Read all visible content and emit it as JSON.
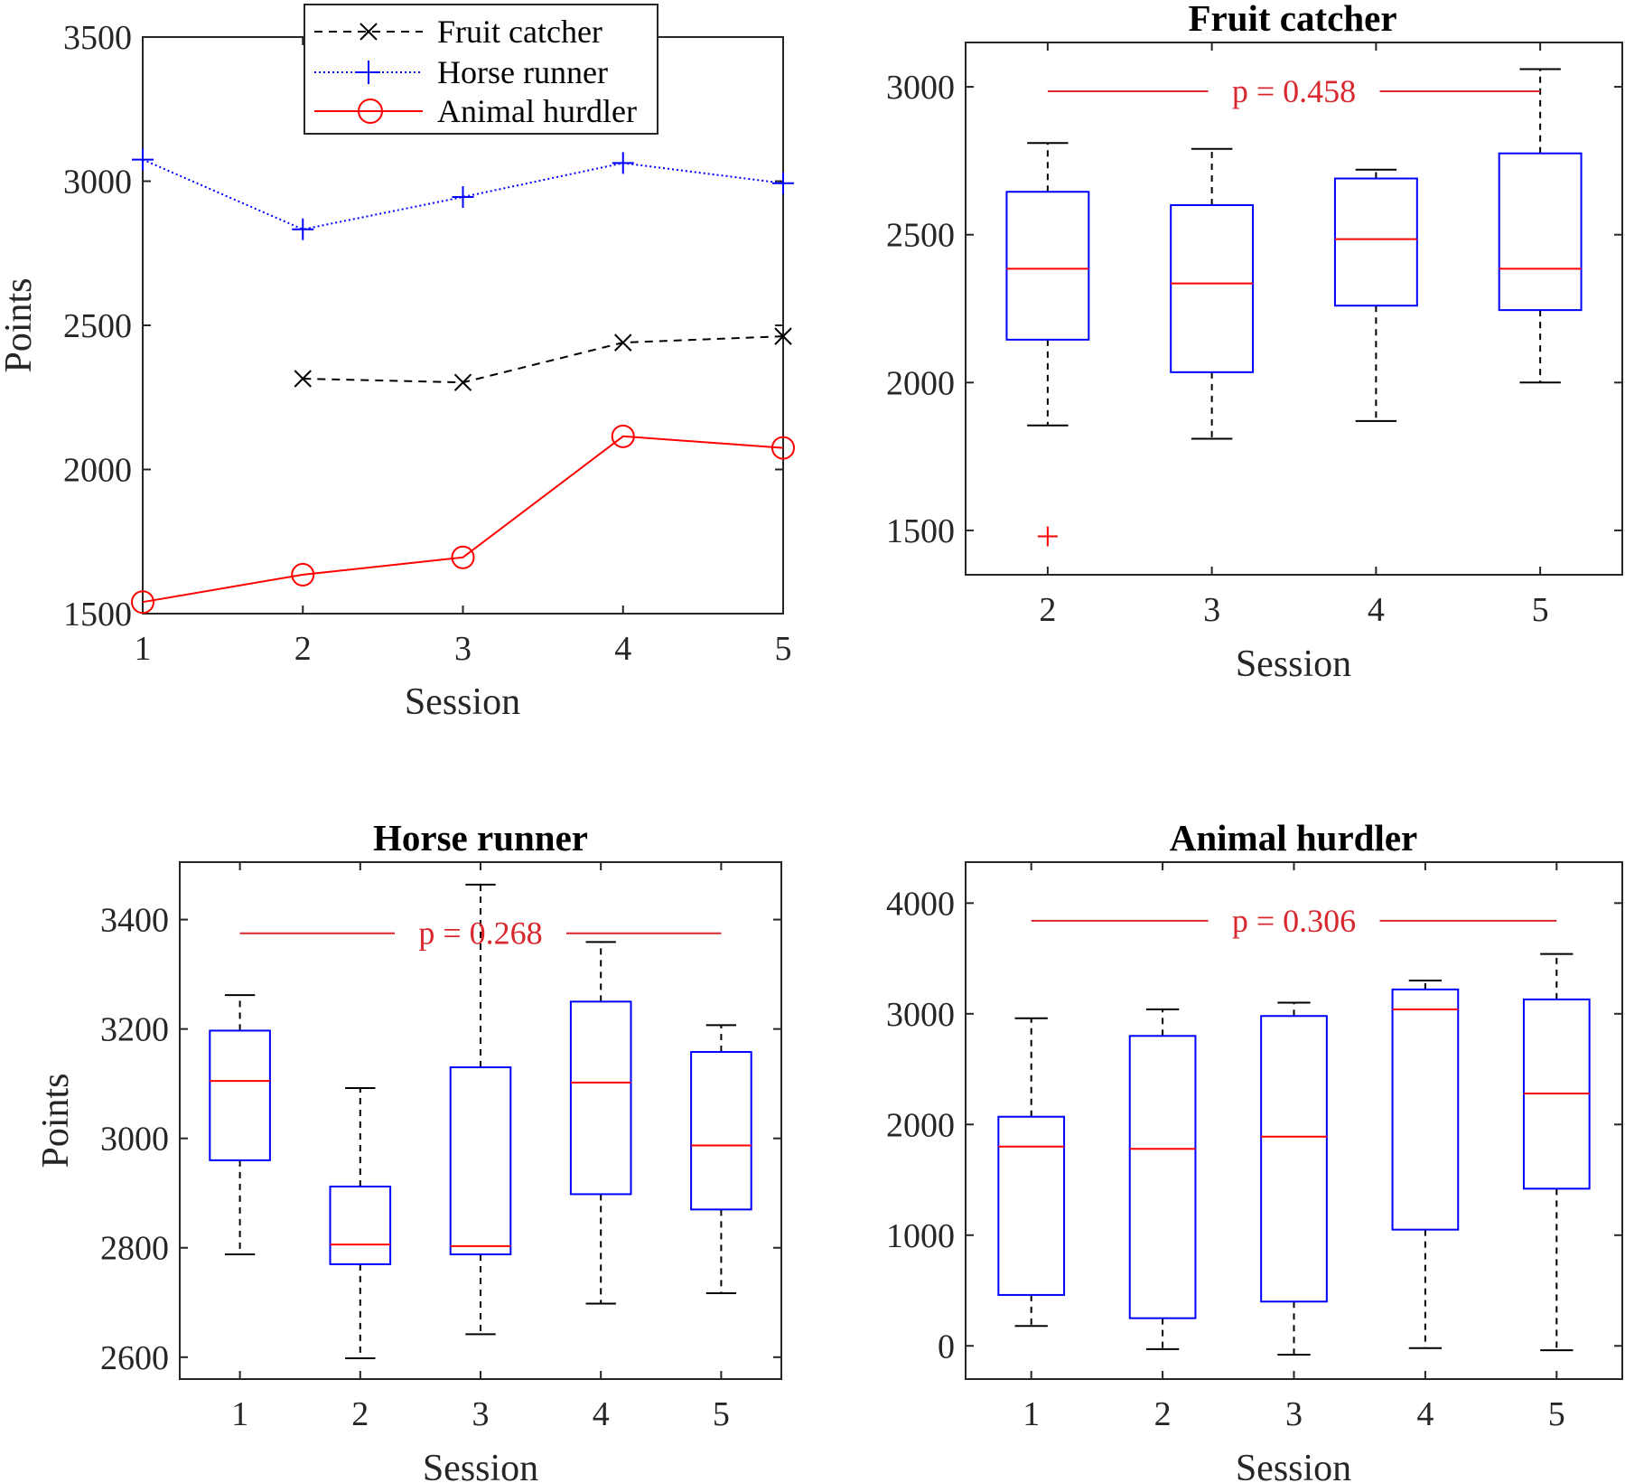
{
  "chart_data": [
    {
      "type": "line",
      "title": "",
      "xlabel": "Session",
      "ylabel": "Points",
      "xlim": [
        1,
        5
      ],
      "ylim": [
        1500,
        3500
      ],
      "xticks": [
        1,
        2,
        3,
        4,
        5
      ],
      "yticks": [
        1500,
        2000,
        2500,
        3000,
        3500
      ],
      "legend_position": "top-center",
      "series": [
        {
          "name": "Fruit catcher",
          "style": "dashed",
          "marker": "x",
          "color": "#000000",
          "x": [
            2,
            3,
            4,
            5
          ],
          "values": [
            2315,
            2302,
            2440,
            2462
          ]
        },
        {
          "name": "Horse runner",
          "style": "dotted",
          "marker": "+",
          "color": "#0000ff",
          "x": [
            1,
            2,
            3,
            4,
            5
          ],
          "values": [
            3075,
            2833,
            2945,
            3063,
            2993
          ]
        },
        {
          "name": "Animal hurdler",
          "style": "solid",
          "marker": "o",
          "color": "#ff0000",
          "x": [
            1,
            2,
            3,
            4,
            5
          ],
          "values": [
            1540,
            1635,
            1695,
            2115,
            2075
          ]
        }
      ]
    },
    {
      "type": "box",
      "title": "Fruit catcher",
      "xlabel": "Session",
      "ylabel": "",
      "categories": [
        "2",
        "3",
        "4",
        "5"
      ],
      "ylim": [
        1350,
        3150
      ],
      "yticks": [
        1500,
        2000,
        2500,
        3000
      ],
      "pvalue": {
        "label": "p = 0.458",
        "y": 2985
      },
      "boxes": [
        {
          "cat": "2",
          "whisker_low": 1855,
          "q1": 2145,
          "median": 2385,
          "q3": 2645,
          "whisker_high": 2810,
          "outliers": [
            1480
          ]
        },
        {
          "cat": "3",
          "whisker_low": 1810,
          "q1": 2035,
          "median": 2335,
          "q3": 2600,
          "whisker_high": 2790,
          "outliers": []
        },
        {
          "cat": "4",
          "whisker_low": 1870,
          "q1": 2260,
          "median": 2485,
          "q3": 2690,
          "whisker_high": 2720,
          "outliers": []
        },
        {
          "cat": "5",
          "whisker_low": 2000,
          "q1": 2245,
          "median": 2385,
          "q3": 2775,
          "whisker_high": 3060,
          "outliers": []
        }
      ]
    },
    {
      "type": "box",
      "title": "Horse runner",
      "xlabel": "Session",
      "ylabel": "Points",
      "categories": [
        "1",
        "2",
        "3",
        "4",
        "5"
      ],
      "ylim": [
        2560,
        3505
      ],
      "yticks": [
        2600,
        2800,
        3000,
        3200,
        3400
      ],
      "pvalue": {
        "label": "p = 0.268",
        "y": 3375
      },
      "boxes": [
        {
          "cat": "1",
          "whisker_low": 2788,
          "q1": 2960,
          "median": 3105,
          "q3": 3197,
          "whisker_high": 3262,
          "outliers": []
        },
        {
          "cat": "2",
          "whisker_low": 2598,
          "q1": 2770,
          "median": 2806,
          "q3": 2912,
          "whisker_high": 3092,
          "outliers": []
        },
        {
          "cat": "3",
          "whisker_low": 2642,
          "q1": 2788,
          "median": 2803,
          "q3": 3130,
          "whisker_high": 3464,
          "outliers": []
        },
        {
          "cat": "4",
          "whisker_low": 2698,
          "q1": 2898,
          "median": 3102,
          "q3": 3250,
          "whisker_high": 3359,
          "outliers": []
        },
        {
          "cat": "5",
          "whisker_low": 2717,
          "q1": 2870,
          "median": 2987,
          "q3": 3158,
          "whisker_high": 3207,
          "outliers": []
        }
      ]
    },
    {
      "type": "box",
      "title": "Animal hurdler",
      "xlabel": "Session",
      "ylabel": "",
      "categories": [
        "1",
        "2",
        "3",
        "4",
        "5"
      ],
      "ylim": [
        -300,
        4370
      ],
      "yticks": [
        0,
        1000,
        2000,
        3000,
        4000
      ],
      "pvalue": {
        "label": "p = 0.306",
        "y": 3840
      },
      "boxes": [
        {
          "cat": "1",
          "whisker_low": 180,
          "q1": 460,
          "median": 1800,
          "q3": 2070,
          "whisker_high": 2960,
          "outliers": []
        },
        {
          "cat": "2",
          "whisker_low": -30,
          "q1": 250,
          "median": 1780,
          "q3": 2800,
          "whisker_high": 3040,
          "outliers": []
        },
        {
          "cat": "3",
          "whisker_low": -80,
          "q1": 400,
          "median": 1890,
          "q3": 2980,
          "whisker_high": 3100,
          "outliers": []
        },
        {
          "cat": "4",
          "whisker_low": -20,
          "q1": 1050,
          "median": 3040,
          "q3": 3220,
          "whisker_high": 3300,
          "outliers": []
        },
        {
          "cat": "5",
          "whisker_low": -40,
          "q1": 1420,
          "median": 2280,
          "q3": 3130,
          "whisker_high": 3540,
          "outliers": []
        }
      ]
    }
  ]
}
